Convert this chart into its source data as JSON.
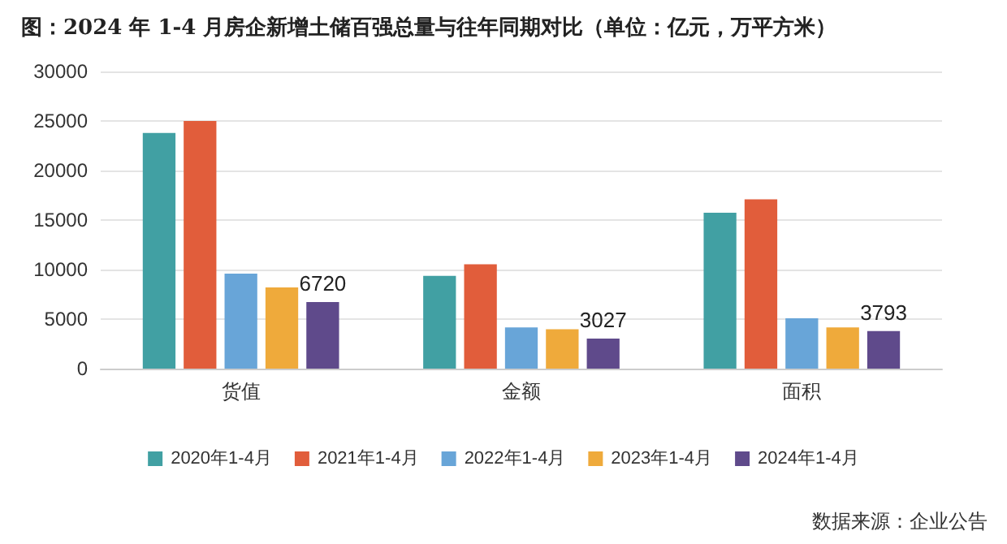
{
  "chart_data": {
    "type": "bar",
    "title": "图：2024 年 1-4 月房企新增土储百强总量与往年同期对比（单位：亿元，万平方米）",
    "categories": [
      "货值",
      "金额",
      "面积"
    ],
    "series": [
      {
        "name": "2020年1-4月",
        "color": "#41a0a3",
        "values": [
          23800,
          9360,
          15730
        ]
      },
      {
        "name": "2021年1-4月",
        "color": "#e15d3b",
        "values": [
          25000,
          10530,
          17080
        ]
      },
      {
        "name": "2022年1-4月",
        "color": "#68a5d8",
        "values": [
          9590,
          4150,
          5090
        ]
      },
      {
        "name": "2023年1-4月",
        "color": "#efaa3b",
        "values": [
          8190,
          3980,
          4150
        ]
      },
      {
        "name": "2024年1-4月",
        "color": "#5f4a8b",
        "values": [
          6720,
          3027,
          3793
        ],
        "value_labels": [
          "6720",
          "3027",
          "3793"
        ]
      }
    ],
    "ylim": [
      0,
      30000
    ],
    "yticks": [
      0,
      5000,
      10000,
      15000,
      20000,
      25000,
      30000
    ],
    "grid": "y",
    "legend": "bottom",
    "annotations": [
      "数据来源：企业公告"
    ]
  }
}
